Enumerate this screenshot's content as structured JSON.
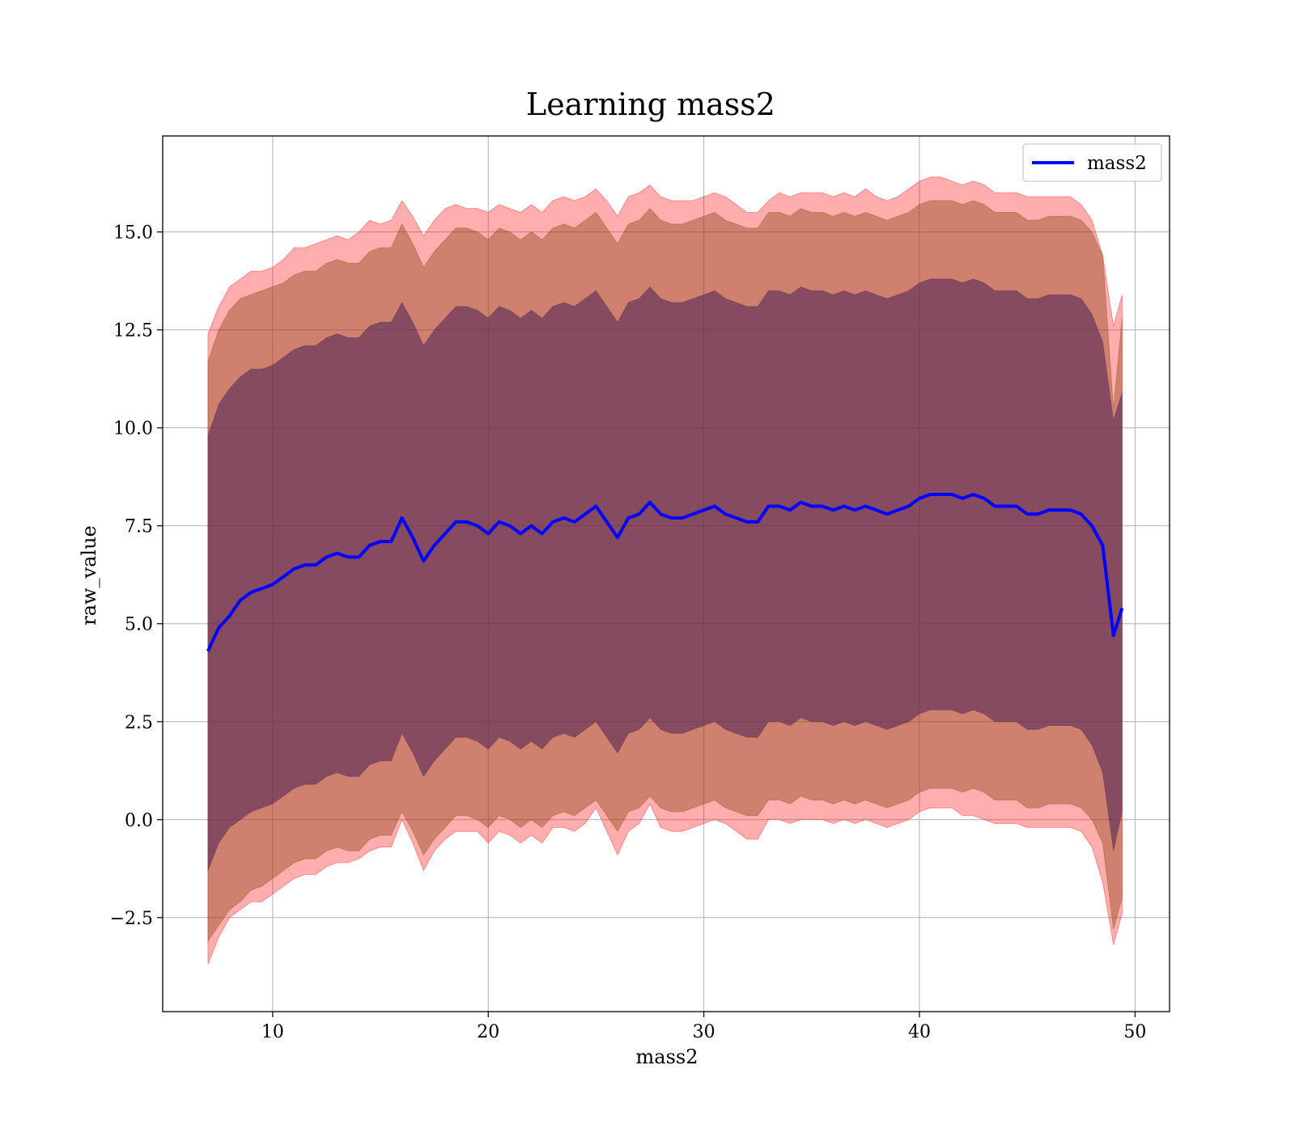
{
  "chart_data": {
    "type": "area",
    "title": "Learning mass2",
    "xlabel": "mass2",
    "ylabel": "raw_value",
    "xlim": [
      4.9,
      51.6
    ],
    "ylim": [
      -4.9,
      17.45
    ],
    "x_ticks": [
      10,
      20,
      30,
      40,
      50
    ],
    "x_tick_labels": [
      "10",
      "20",
      "30",
      "40",
      "50"
    ],
    "y_ticks": [
      -2.5,
      0.0,
      2.5,
      5.0,
      7.5,
      10.0,
      12.5,
      15.0
    ],
    "y_tick_labels": [
      "−2.5",
      "0.0",
      "2.5",
      "5.0",
      "7.5",
      "10.0",
      "12.5",
      "15.0"
    ],
    "grid": true,
    "legend_position": "top-right",
    "colors": {
      "mean_line": "#0000ff",
      "band_fill": "#ff0000",
      "band_overlap": "#8b4513",
      "inner_band": "#5a2a5a"
    },
    "series": [
      {
        "name": "mass2",
        "role": "mean",
        "x": [
          7.0,
          7.5,
          8.0,
          8.5,
          9.0,
          9.5,
          10.0,
          10.5,
          11.0,
          11.5,
          12.0,
          12.5,
          13.0,
          13.5,
          14.0,
          14.5,
          15.0,
          15.5,
          16.0,
          16.5,
          17.0,
          17.5,
          18.0,
          18.5,
          19.0,
          19.5,
          20.0,
          20.5,
          21.0,
          21.5,
          22.0,
          22.5,
          23.0,
          23.5,
          24.0,
          24.5,
          25.0,
          25.5,
          26.0,
          26.5,
          27.0,
          27.5,
          28.0,
          28.5,
          29.0,
          29.5,
          30.0,
          30.5,
          31.0,
          31.5,
          32.0,
          32.5,
          33.0,
          33.5,
          34.0,
          34.5,
          35.0,
          35.5,
          36.0,
          36.5,
          37.0,
          37.5,
          38.0,
          38.5,
          39.0,
          39.5,
          40.0,
          40.5,
          41.0,
          41.5,
          42.0,
          42.5,
          43.0,
          43.5,
          44.0,
          44.5,
          45.0,
          45.5,
          46.0,
          46.5,
          47.0,
          47.5,
          48.0,
          48.5,
          49.0,
          49.4
        ],
        "values": [
          4.3,
          4.9,
          5.2,
          5.6,
          5.8,
          5.9,
          6.0,
          6.2,
          6.4,
          6.5,
          6.5,
          6.7,
          6.8,
          6.7,
          6.7,
          7.0,
          7.1,
          7.1,
          7.7,
          7.2,
          6.6,
          7.0,
          7.3,
          7.6,
          7.6,
          7.5,
          7.3,
          7.6,
          7.5,
          7.3,
          7.5,
          7.3,
          7.6,
          7.7,
          7.6,
          7.8,
          8.0,
          7.6,
          7.2,
          7.7,
          7.8,
          8.1,
          7.8,
          7.7,
          7.7,
          7.8,
          7.9,
          8.0,
          7.8,
          7.7,
          7.6,
          7.6,
          8.0,
          8.0,
          7.9,
          8.1,
          8.0,
          8.0,
          7.9,
          8.0,
          7.9,
          8.0,
          7.9,
          7.8,
          7.9,
          8.0,
          8.2,
          8.3,
          8.3,
          8.3,
          8.2,
          8.3,
          8.2,
          8.0,
          8.0,
          8.0,
          7.8,
          7.8,
          7.9,
          7.9,
          7.9,
          7.8,
          7.5,
          7.0,
          4.7,
          5.4
        ]
      },
      {
        "name": "",
        "role": "outer band (upper / lower)",
        "x": [
          7.0,
          7.5,
          8.0,
          8.5,
          9.0,
          9.5,
          10.0,
          10.5,
          11.0,
          11.5,
          12.0,
          12.5,
          13.0,
          13.5,
          14.0,
          14.5,
          15.0,
          15.5,
          16.0,
          16.5,
          17.0,
          17.5,
          18.0,
          18.5,
          19.0,
          19.5,
          20.0,
          20.5,
          21.0,
          21.5,
          22.0,
          22.5,
          23.0,
          23.5,
          24.0,
          24.5,
          25.0,
          25.5,
          26.0,
          26.5,
          27.0,
          27.5,
          28.0,
          28.5,
          29.0,
          29.5,
          30.0,
          30.5,
          31.0,
          31.5,
          32.0,
          32.5,
          33.0,
          33.5,
          34.0,
          34.5,
          35.0,
          35.5,
          36.0,
          36.5,
          37.0,
          37.5,
          38.0,
          38.5,
          39.0,
          39.5,
          40.0,
          40.5,
          41.0,
          41.5,
          42.0,
          42.5,
          43.0,
          43.5,
          44.0,
          44.5,
          45.0,
          45.5,
          46.0,
          46.5,
          47.0,
          47.5,
          48.0,
          48.5,
          49.0,
          49.4
        ],
        "upper": [
          12.4,
          13.1,
          13.6,
          13.8,
          14.0,
          14.0,
          14.1,
          14.3,
          14.6,
          14.6,
          14.7,
          14.8,
          14.9,
          14.8,
          15.0,
          15.3,
          15.2,
          15.3,
          15.8,
          15.4,
          14.9,
          15.3,
          15.6,
          15.7,
          15.6,
          15.6,
          15.5,
          15.7,
          15.6,
          15.5,
          15.7,
          15.5,
          15.8,
          15.9,
          15.8,
          15.9,
          16.1,
          15.8,
          15.4,
          15.9,
          16.0,
          16.2,
          15.9,
          15.8,
          15.8,
          15.8,
          15.9,
          16.0,
          15.9,
          15.7,
          15.5,
          15.5,
          15.8,
          16.0,
          15.9,
          16.0,
          16.0,
          16.0,
          15.9,
          16.0,
          15.9,
          16.1,
          15.9,
          15.8,
          15.9,
          16.1,
          16.3,
          16.4,
          16.4,
          16.3,
          16.2,
          16.3,
          16.2,
          16.0,
          16.0,
          16.0,
          15.9,
          15.9,
          15.9,
          15.9,
          15.9,
          15.7,
          15.3,
          14.4,
          12.6,
          13.4
        ],
        "lower": [
          -3.7,
          -3.0,
          -2.5,
          -2.3,
          -2.1,
          -2.1,
          -1.9,
          -1.7,
          -1.5,
          -1.4,
          -1.4,
          -1.2,
          -1.1,
          -1.1,
          -1.0,
          -0.8,
          -0.7,
          -0.7,
          0.0,
          -0.6,
          -1.3,
          -0.8,
          -0.5,
          -0.3,
          -0.3,
          -0.3,
          -0.6,
          -0.3,
          -0.4,
          -0.6,
          -0.4,
          -0.6,
          -0.2,
          -0.2,
          -0.3,
          -0.1,
          0.3,
          -0.3,
          -0.9,
          -0.3,
          -0.1,
          0.4,
          -0.2,
          -0.3,
          -0.3,
          -0.2,
          -0.1,
          0.0,
          -0.1,
          -0.3,
          -0.5,
          -0.5,
          0.0,
          0.0,
          -0.1,
          0.0,
          0.0,
          0.0,
          -0.1,
          0.0,
          -0.1,
          0.0,
          -0.1,
          -0.2,
          -0.1,
          0.0,
          0.2,
          0.3,
          0.3,
          0.3,
          0.1,
          0.1,
          0.0,
          -0.1,
          -0.1,
          -0.1,
          -0.2,
          -0.2,
          -0.2,
          -0.2,
          -0.2,
          -0.3,
          -0.7,
          -1.6,
          -3.2,
          -2.4
        ]
      },
      {
        "name": "",
        "role": "middle band (upper / lower)",
        "x": [
          7.0,
          7.5,
          8.0,
          8.5,
          9.0,
          9.5,
          10.0,
          10.5,
          11.0,
          11.5,
          12.0,
          12.5,
          13.0,
          13.5,
          14.0,
          14.5,
          15.0,
          15.5,
          16.0,
          16.5,
          17.0,
          17.5,
          18.0,
          18.5,
          19.0,
          19.5,
          20.0,
          20.5,
          21.0,
          21.5,
          22.0,
          22.5,
          23.0,
          23.5,
          24.0,
          24.5,
          25.0,
          25.5,
          26.0,
          26.5,
          27.0,
          27.5,
          28.0,
          28.5,
          29.0,
          29.5,
          30.0,
          30.5,
          31.0,
          31.5,
          32.0,
          32.5,
          33.0,
          33.5,
          34.0,
          34.5,
          35.0,
          35.5,
          36.0,
          36.5,
          37.0,
          37.5,
          38.0,
          38.5,
          39.0,
          39.5,
          40.0,
          40.5,
          41.0,
          41.5,
          42.0,
          42.5,
          43.0,
          43.5,
          44.0,
          44.5,
          45.0,
          45.5,
          46.0,
          46.5,
          47.0,
          47.5,
          48.0,
          48.5,
          49.0,
          49.4
        ],
        "upper": [
          11.7,
          12.5,
          13.0,
          13.3,
          13.4,
          13.5,
          13.6,
          13.7,
          13.9,
          14.0,
          14.0,
          14.2,
          14.3,
          14.2,
          14.2,
          14.5,
          14.6,
          14.6,
          15.2,
          14.7,
          14.1,
          14.5,
          14.8,
          15.1,
          15.1,
          15.0,
          14.8,
          15.1,
          15.0,
          14.8,
          15.0,
          14.8,
          15.1,
          15.2,
          15.1,
          15.3,
          15.5,
          15.1,
          14.7,
          15.2,
          15.3,
          15.6,
          15.3,
          15.2,
          15.2,
          15.3,
          15.4,
          15.5,
          15.3,
          15.2,
          15.1,
          15.1,
          15.5,
          15.5,
          15.4,
          15.6,
          15.5,
          15.5,
          15.4,
          15.5,
          15.4,
          15.5,
          15.4,
          15.3,
          15.4,
          15.5,
          15.7,
          15.8,
          15.8,
          15.8,
          15.7,
          15.8,
          15.7,
          15.5,
          15.5,
          15.5,
          15.3,
          15.3,
          15.4,
          15.4,
          15.4,
          15.3,
          15.0,
          14.4,
          10.5,
          12.8
        ],
        "lower": [
          -3.1,
          -2.7,
          -2.3,
          -2.1,
          -1.8,
          -1.7,
          -1.5,
          -1.3,
          -1.1,
          -1.0,
          -1.0,
          -0.8,
          -0.7,
          -0.8,
          -0.8,
          -0.5,
          -0.4,
          -0.4,
          0.2,
          -0.3,
          -0.9,
          -0.5,
          -0.2,
          0.1,
          0.1,
          0.0,
          -0.2,
          0.1,
          0.0,
          -0.2,
          0.0,
          -0.2,
          0.1,
          0.2,
          0.1,
          0.3,
          0.5,
          0.1,
          -0.3,
          0.2,
          0.3,
          0.6,
          0.3,
          0.2,
          0.2,
          0.3,
          0.4,
          0.5,
          0.3,
          0.2,
          0.1,
          0.1,
          0.5,
          0.5,
          0.4,
          0.6,
          0.5,
          0.5,
          0.4,
          0.5,
          0.4,
          0.5,
          0.4,
          0.3,
          0.4,
          0.5,
          0.7,
          0.8,
          0.8,
          0.8,
          0.7,
          0.8,
          0.7,
          0.5,
          0.5,
          0.5,
          0.3,
          0.3,
          0.4,
          0.4,
          0.4,
          0.3,
          0.0,
          -0.6,
          -2.8,
          -2.0
        ]
      },
      {
        "name": "",
        "role": "inner band (upper / lower)",
        "x": [
          7.0,
          7.5,
          8.0,
          8.5,
          9.0,
          9.5,
          10.0,
          10.5,
          11.0,
          11.5,
          12.0,
          12.5,
          13.0,
          13.5,
          14.0,
          14.5,
          15.0,
          15.5,
          16.0,
          16.5,
          17.0,
          17.5,
          18.0,
          18.5,
          19.0,
          19.5,
          20.0,
          20.5,
          21.0,
          21.5,
          22.0,
          22.5,
          23.0,
          23.5,
          24.0,
          24.5,
          25.0,
          25.5,
          26.0,
          26.5,
          27.0,
          27.5,
          28.0,
          28.5,
          29.0,
          29.5,
          30.0,
          30.5,
          31.0,
          31.5,
          32.0,
          32.5,
          33.0,
          33.5,
          34.0,
          34.5,
          35.0,
          35.5,
          36.0,
          36.5,
          37.0,
          37.5,
          38.0,
          38.5,
          39.0,
          39.5,
          40.0,
          40.5,
          41.0,
          41.5,
          42.0,
          42.5,
          43.0,
          43.5,
          44.0,
          44.5,
          45.0,
          45.5,
          46.0,
          46.5,
          47.0,
          47.5,
          48.0,
          48.5,
          49.0,
          49.4
        ],
        "upper": [
          9.8,
          10.6,
          11.0,
          11.3,
          11.5,
          11.5,
          11.6,
          11.8,
          12.0,
          12.1,
          12.1,
          12.3,
          12.4,
          12.3,
          12.3,
          12.6,
          12.7,
          12.7,
          13.2,
          12.7,
          12.1,
          12.5,
          12.8,
          13.1,
          13.1,
          13.0,
          12.8,
          13.1,
          13.0,
          12.8,
          13.0,
          12.8,
          13.1,
          13.2,
          13.1,
          13.3,
          13.5,
          13.1,
          12.7,
          13.2,
          13.3,
          13.6,
          13.3,
          13.2,
          13.2,
          13.3,
          13.4,
          13.5,
          13.3,
          13.2,
          13.1,
          13.1,
          13.5,
          13.5,
          13.4,
          13.6,
          13.5,
          13.5,
          13.4,
          13.5,
          13.4,
          13.5,
          13.4,
          13.3,
          13.4,
          13.5,
          13.7,
          13.8,
          13.8,
          13.8,
          13.7,
          13.8,
          13.7,
          13.5,
          13.5,
          13.5,
          13.3,
          13.3,
          13.4,
          13.4,
          13.4,
          13.3,
          12.9,
          12.2,
          10.2,
          10.9
        ],
        "lower": [
          -1.3,
          -0.6,
          -0.2,
          0.0,
          0.2,
          0.3,
          0.4,
          0.6,
          0.8,
          0.9,
          0.9,
          1.1,
          1.2,
          1.1,
          1.1,
          1.4,
          1.5,
          1.5,
          2.2,
          1.7,
          1.1,
          1.5,
          1.8,
          2.1,
          2.1,
          2.0,
          1.8,
          2.1,
          2.0,
          1.8,
          2.0,
          1.8,
          2.1,
          2.2,
          2.1,
          2.3,
          2.5,
          2.1,
          1.7,
          2.2,
          2.3,
          2.6,
          2.3,
          2.2,
          2.2,
          2.3,
          2.4,
          2.5,
          2.3,
          2.2,
          2.1,
          2.1,
          2.5,
          2.5,
          2.4,
          2.6,
          2.5,
          2.5,
          2.4,
          2.5,
          2.4,
          2.5,
          2.4,
          2.3,
          2.4,
          2.5,
          2.7,
          2.8,
          2.8,
          2.8,
          2.7,
          2.8,
          2.7,
          2.5,
          2.5,
          2.5,
          2.3,
          2.3,
          2.4,
          2.4,
          2.4,
          2.3,
          1.9,
          1.2,
          -0.8,
          0.2
        ]
      }
    ]
  }
}
